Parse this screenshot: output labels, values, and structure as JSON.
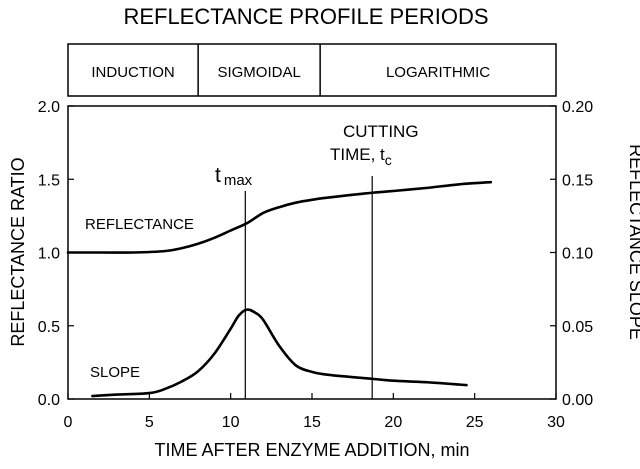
{
  "chart_data": {
    "type": "line",
    "title": "REFLECTANCE PROFILE PERIODS",
    "periods": [
      {
        "label": "INDUCTION",
        "x_start": 0,
        "x_end": 8
      },
      {
        "label": "SIGMOIDAL",
        "x_start": 8,
        "x_end": 15.5
      },
      {
        "label": "LOGARITHMIC",
        "x_start": 15.5,
        "x_end": 30
      }
    ],
    "xlabel": "TIME AFTER ENZYME ADDITION, min",
    "ylabel": "REFLECTANCE RATIO",
    "y2label": "REFLECTANCE SLOPE",
    "xlim": [
      0,
      30
    ],
    "ylim": [
      0,
      2.0
    ],
    "y2lim": [
      0,
      0.2
    ],
    "xticks": [
      0,
      5,
      10,
      15,
      20,
      25,
      30
    ],
    "xtick_labels": [
      "0",
      "5",
      "10",
      "15",
      "20",
      "25",
      "30"
    ],
    "yticks": [
      0,
      0.5,
      1.0,
      1.5,
      2.0
    ],
    "ytick_labels": [
      "0.0",
      "0.5",
      "1.0",
      "1.5",
      "2.0"
    ],
    "y2ticks": [
      0,
      0.05,
      0.1,
      0.15,
      0.2
    ],
    "y2tick_labels": [
      "0.00",
      "0.05",
      "0.10",
      "0.15",
      "0.20"
    ],
    "grid": false,
    "series": [
      {
        "name": "REFLECTANCE",
        "axis": "left",
        "x": [
          0,
          2,
          4,
          6,
          7,
          8,
          9,
          10,
          11,
          12,
          13,
          14,
          15,
          16,
          18,
          20,
          22,
          24,
          26
        ],
        "y": [
          1.0,
          1.0,
          1.0,
          1.01,
          1.03,
          1.06,
          1.1,
          1.15,
          1.2,
          1.27,
          1.31,
          1.34,
          1.36,
          1.375,
          1.4,
          1.42,
          1.44,
          1.465,
          1.48
        ]
      },
      {
        "name": "SLOPE",
        "axis": "right",
        "x": [
          1.5,
          3,
          5,
          6,
          7,
          8,
          9,
          10,
          10.5,
          11,
          11.5,
          12,
          13,
          14,
          15,
          16,
          18,
          20,
          22,
          24.5
        ],
        "y": [
          0.002,
          0.003,
          0.004,
          0.007,
          0.012,
          0.019,
          0.031,
          0.048,
          0.057,
          0.061,
          0.059,
          0.054,
          0.036,
          0.023,
          0.0185,
          0.0165,
          0.0145,
          0.0125,
          0.0115,
          0.0095
        ]
      }
    ],
    "markers": [
      {
        "label": "t",
        "subscript": "max",
        "x": 10.9
      },
      {
        "label_line1": "CUTTING",
        "label_line2": "TIME, t",
        "subscript": "c",
        "x": 18.7
      }
    ]
  }
}
